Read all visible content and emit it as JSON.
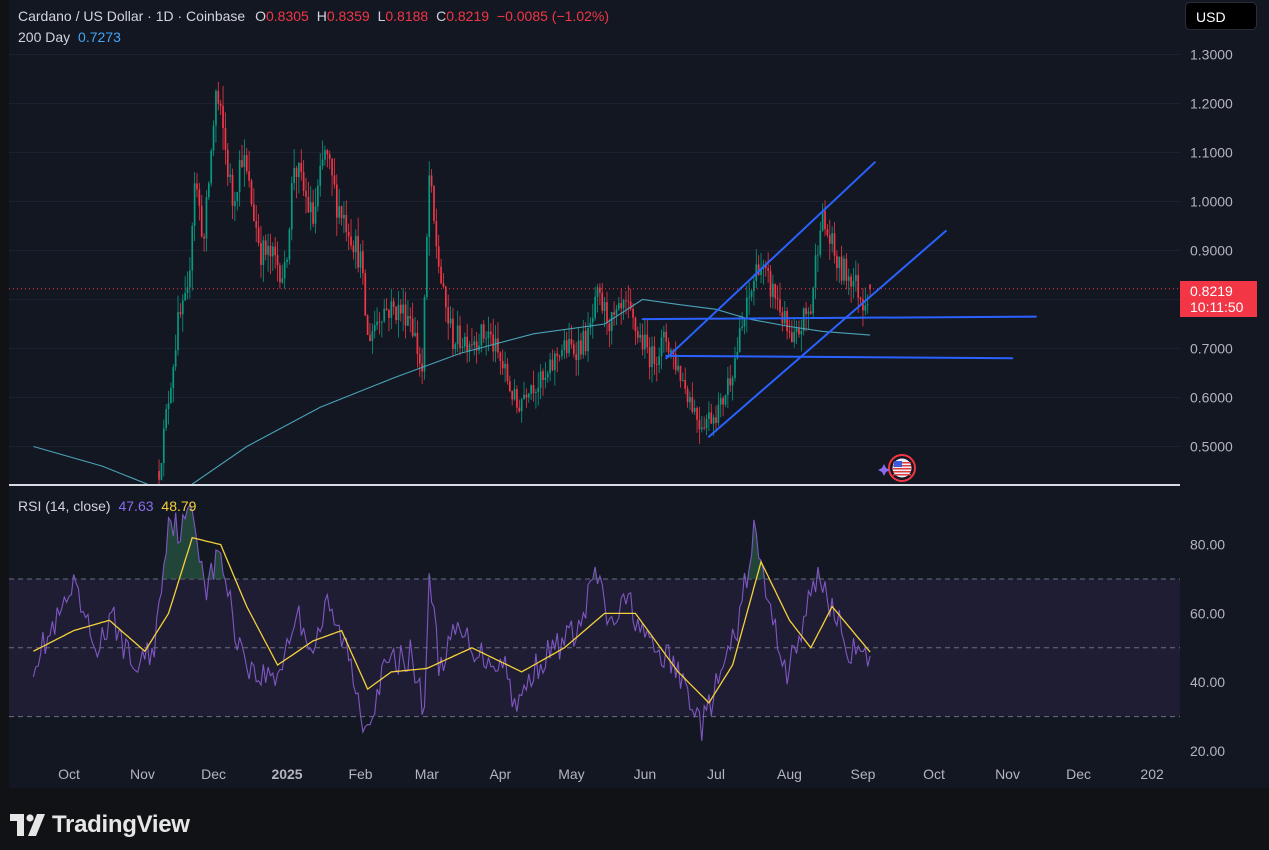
{
  "header": {
    "symbol": "Cardano / US Dollar · 1D · Coinbase",
    "o_label": "O",
    "o_value": "0.8305",
    "h_label": "H",
    "h_value": "0.8359",
    "l_label": "L",
    "l_value": "0.8188",
    "c_label": "C",
    "c_value": "0.8219",
    "change": "−0.0085 (−1.02%)"
  },
  "ma_legend": {
    "label": "200 Day",
    "value": "0.7273"
  },
  "currency_button": "USD",
  "current_price": {
    "value": "0.8219",
    "countdown": "10:11:50"
  },
  "rsi_legend": {
    "label": "RSI (14, close)",
    "rsi_value": "47.63",
    "ma_value": "48.79"
  },
  "brand": {
    "name": "TradingView"
  },
  "colors": {
    "up": "#089981",
    "down": "#f23645",
    "ma200": "#4aa3b8",
    "rsi": "#7e57c2",
    "rsi_ma": "#f5d13b",
    "trendline": "#2962ff"
  },
  "chart_data": [
    {
      "type": "candlestick",
      "title": "Cardano / US Dollar · 1D · Coinbase",
      "y_ticks": [
        "1.3000",
        "1.2000",
        "1.1000",
        "1.0000",
        "0.9000",
        "0.8000",
        "0.7000",
        "0.6000",
        "0.5000"
      ],
      "ylim": [
        0.43,
        1.36
      ],
      "x_ticks": [
        "Oct",
        "Nov",
        "Dec",
        "2025",
        "Feb",
        "Mar",
        "Apr",
        "May",
        "Jun",
        "Jul",
        "Aug",
        "Sep",
        "Oct",
        "Nov",
        "Dec",
        "202"
      ],
      "approx_close_path": [
        {
          "date": "2024-11-08",
          "close": 0.45
        },
        {
          "date": "2024-11-12",
          "close": 0.6
        },
        {
          "date": "2024-11-16",
          "close": 0.75
        },
        {
          "date": "2024-11-20",
          "close": 0.8
        },
        {
          "date": "2024-11-23",
          "close": 1.05
        },
        {
          "date": "2024-11-27",
          "close": 0.92
        },
        {
          "date": "2024-12-02",
          "close": 1.22
        },
        {
          "date": "2024-12-05",
          "close": 1.14
        },
        {
          "date": "2024-12-09",
          "close": 1.0
        },
        {
          "date": "2024-12-13",
          "close": 1.1
        },
        {
          "date": "2024-12-17",
          "close": 1.0
        },
        {
          "date": "2024-12-21",
          "close": 0.9
        },
        {
          "date": "2024-12-27",
          "close": 0.88
        },
        {
          "date": "2024-12-31",
          "close": 0.85
        },
        {
          "date": "2025-01-04",
          "close": 1.08
        },
        {
          "date": "2025-01-08",
          "close": 1.02
        },
        {
          "date": "2025-01-12",
          "close": 0.96
        },
        {
          "date": "2025-01-17",
          "close": 1.1
        },
        {
          "date": "2025-01-22",
          "close": 1.0
        },
        {
          "date": "2025-01-27",
          "close": 0.95
        },
        {
          "date": "2025-02-01",
          "close": 0.88
        },
        {
          "date": "2025-02-04",
          "close": 0.72
        },
        {
          "date": "2025-02-10",
          "close": 0.78
        },
        {
          "date": "2025-02-16",
          "close": 0.78
        },
        {
          "date": "2025-02-22",
          "close": 0.77
        },
        {
          "date": "2025-02-27",
          "close": 0.65
        },
        {
          "date": "2025-03-02",
          "close": 1.05
        },
        {
          "date": "2025-03-04",
          "close": 0.95
        },
        {
          "date": "2025-03-08",
          "close": 0.8
        },
        {
          "date": "2025-03-12",
          "close": 0.72
        },
        {
          "date": "2025-03-20",
          "close": 0.72
        },
        {
          "date": "2025-03-27",
          "close": 0.73
        },
        {
          "date": "2025-04-03",
          "close": 0.65
        },
        {
          "date": "2025-04-08",
          "close": 0.58
        },
        {
          "date": "2025-04-13",
          "close": 0.63
        },
        {
          "date": "2025-04-20",
          "close": 0.63
        },
        {
          "date": "2025-04-26",
          "close": 0.7
        },
        {
          "date": "2025-05-02",
          "close": 0.7
        },
        {
          "date": "2025-05-08",
          "close": 0.72
        },
        {
          "date": "2025-05-12",
          "close": 0.8
        },
        {
          "date": "2025-05-18",
          "close": 0.75
        },
        {
          "date": "2025-05-24",
          "close": 0.78
        },
        {
          "date": "2025-05-29",
          "close": 0.73
        },
        {
          "date": "2025-06-04",
          "close": 0.68
        },
        {
          "date": "2025-06-10",
          "close": 0.72
        },
        {
          "date": "2025-06-15",
          "close": 0.66
        },
        {
          "date": "2025-06-20",
          "close": 0.6
        },
        {
          "date": "2025-06-24",
          "close": 0.55
        },
        {
          "date": "2025-06-28",
          "close": 0.56
        },
        {
          "date": "2025-07-03",
          "close": 0.58
        },
        {
          "date": "2025-07-09",
          "close": 0.68
        },
        {
          "date": "2025-07-14",
          "close": 0.78
        },
        {
          "date": "2025-07-19",
          "close": 0.88
        },
        {
          "date": "2025-07-22",
          "close": 0.84
        },
        {
          "date": "2025-07-27",
          "close": 0.8
        },
        {
          "date": "2025-08-02",
          "close": 0.7
        },
        {
          "date": "2025-08-07",
          "close": 0.76
        },
        {
          "date": "2025-08-10",
          "close": 0.78
        },
        {
          "date": "2025-08-14",
          "close": 0.97
        },
        {
          "date": "2025-08-18",
          "close": 0.92
        },
        {
          "date": "2025-08-22",
          "close": 0.86
        },
        {
          "date": "2025-08-27",
          "close": 0.85
        },
        {
          "date": "2025-09-01",
          "close": 0.8
        },
        {
          "date": "2025-09-04",
          "close": 0.8219
        }
      ],
      "ma200_path": [
        {
          "date": "2024-09-16",
          "value": 0.5
        },
        {
          "date": "2024-10-15",
          "value": 0.46
        },
        {
          "date": "2024-11-15",
          "value": 0.4
        },
        {
          "date": "2024-12-15",
          "value": 0.5
        },
        {
          "date": "2025-01-15",
          "value": 0.58
        },
        {
          "date": "2025-02-15",
          "value": 0.64
        },
        {
          "date": "2025-03-15",
          "value": 0.69
        },
        {
          "date": "2025-04-15",
          "value": 0.73
        },
        {
          "date": "2025-05-15",
          "value": 0.75
        },
        {
          "date": "2025-05-31",
          "value": 0.8
        },
        {
          "date": "2025-06-15",
          "value": 0.79
        },
        {
          "date": "2025-07-01",
          "value": 0.78
        },
        {
          "date": "2025-07-15",
          "value": 0.76
        },
        {
          "date": "2025-08-01",
          "value": 0.745
        },
        {
          "date": "2025-08-15",
          "value": 0.735
        },
        {
          "date": "2025-09-04",
          "value": 0.7273
        }
      ],
      "trendlines": [
        {
          "from": {
            "date": "2025-06-10",
            "value": 0.68
          },
          "to": {
            "date": "2025-09-06",
            "value": 1.08
          }
        },
        {
          "from": {
            "date": "2025-06-28",
            "value": 0.52
          },
          "to": {
            "date": "2025-10-06",
            "value": 0.94
          }
        },
        {
          "from": {
            "date": "2025-05-31",
            "value": 0.76
          },
          "to": {
            "date": "2025-11-13",
            "value": 0.765
          }
        },
        {
          "from": {
            "date": "2025-06-10",
            "value": 0.685
          },
          "to": {
            "date": "2025-11-03",
            "value": 0.68
          }
        }
      ]
    },
    {
      "type": "line",
      "title": "RSI (14, close)",
      "y_ticks": [
        "80.00",
        "60.00",
        "40.00",
        "20.00"
      ],
      "ylim": [
        20,
        92
      ],
      "bands": [
        30,
        50,
        70
      ],
      "series": [
        {
          "name": "RSI",
          "values": [
            {
              "date": "2024-09-16",
              "value": 46
            },
            {
              "date": "2024-09-25",
              "value": 56
            },
            {
              "date": "2024-10-03",
              "value": 67
            },
            {
              "date": "2024-10-12",
              "value": 50
            },
            {
              "date": "2024-10-20",
              "value": 58
            },
            {
              "date": "2024-10-28",
              "value": 44
            },
            {
              "date": "2024-11-06",
              "value": 50
            },
            {
              "date": "2024-11-12",
              "value": 88
            },
            {
              "date": "2024-11-17",
              "value": 84
            },
            {
              "date": "2024-11-22",
              "value": 90
            },
            {
              "date": "2024-11-28",
              "value": 68
            },
            {
              "date": "2024-12-04",
              "value": 78
            },
            {
              "date": "2024-12-10",
              "value": 55
            },
            {
              "date": "2024-12-18",
              "value": 42
            },
            {
              "date": "2024-12-28",
              "value": 42
            },
            {
              "date": "2025-01-05",
              "value": 60
            },
            {
              "date": "2025-01-12",
              "value": 50
            },
            {
              "date": "2025-01-18",
              "value": 62
            },
            {
              "date": "2025-01-26",
              "value": 50
            },
            {
              "date": "2025-02-03",
              "value": 27
            },
            {
              "date": "2025-02-12",
              "value": 45
            },
            {
              "date": "2025-02-22",
              "value": 48
            },
            {
              "date": "2025-02-28",
              "value": 32
            },
            {
              "date": "2025-03-02",
              "value": 73
            },
            {
              "date": "2025-03-06",
              "value": 45
            },
            {
              "date": "2025-03-14",
              "value": 55
            },
            {
              "date": "2025-03-24",
              "value": 48
            },
            {
              "date": "2025-04-03",
              "value": 45
            },
            {
              "date": "2025-04-08",
              "value": 32
            },
            {
              "date": "2025-04-15",
              "value": 44
            },
            {
              "date": "2025-04-24",
              "value": 50
            },
            {
              "date": "2025-05-05",
              "value": 56
            },
            {
              "date": "2025-05-11",
              "value": 73
            },
            {
              "date": "2025-05-17",
              "value": 56
            },
            {
              "date": "2025-05-25",
              "value": 64
            },
            {
              "date": "2025-06-03",
              "value": 50
            },
            {
              "date": "2025-06-12",
              "value": 46
            },
            {
              "date": "2025-06-20",
              "value": 36
            },
            {
              "date": "2025-06-25",
              "value": 27
            },
            {
              "date": "2025-07-03",
              "value": 42
            },
            {
              "date": "2025-07-10",
              "value": 55
            },
            {
              "date": "2025-07-17",
              "value": 84
            },
            {
              "date": "2025-07-24",
              "value": 60
            },
            {
              "date": "2025-07-31",
              "value": 43
            },
            {
              "date": "2025-08-06",
              "value": 55
            },
            {
              "date": "2025-08-13",
              "value": 72
            },
            {
              "date": "2025-08-20",
              "value": 60
            },
            {
              "date": "2025-08-26",
              "value": 50
            },
            {
              "date": "2025-09-01",
              "value": 46
            },
            {
              "date": "2025-09-04",
              "value": 47.63
            }
          ]
        },
        {
          "name": "RSI MA",
          "values": [
            {
              "date": "2024-09-16",
              "value": 49
            },
            {
              "date": "2024-10-03",
              "value": 55
            },
            {
              "date": "2024-10-18",
              "value": 58
            },
            {
              "date": "2024-11-02",
              "value": 49
            },
            {
              "date": "2024-11-12",
              "value": 60
            },
            {
              "date": "2024-11-22",
              "value": 82
            },
            {
              "date": "2024-12-04",
              "value": 80
            },
            {
              "date": "2024-12-15",
              "value": 62
            },
            {
              "date": "2024-12-28",
              "value": 45
            },
            {
              "date": "2025-01-12",
              "value": 52
            },
            {
              "date": "2025-01-24",
              "value": 55
            },
            {
              "date": "2025-02-04",
              "value": 38
            },
            {
              "date": "2025-02-14",
              "value": 43
            },
            {
              "date": "2025-03-01",
              "value": 44
            },
            {
              "date": "2025-03-20",
              "value": 50
            },
            {
              "date": "2025-04-10",
              "value": 43
            },
            {
              "date": "2025-04-28",
              "value": 50
            },
            {
              "date": "2025-05-15",
              "value": 60
            },
            {
              "date": "2025-05-28",
              "value": 60
            },
            {
              "date": "2025-06-15",
              "value": 43
            },
            {
              "date": "2025-06-28",
              "value": 34
            },
            {
              "date": "2025-07-08",
              "value": 45
            },
            {
              "date": "2025-07-20",
              "value": 75
            },
            {
              "date": "2025-08-01",
              "value": 58
            },
            {
              "date": "2025-08-10",
              "value": 50
            },
            {
              "date": "2025-08-19",
              "value": 62
            },
            {
              "date": "2025-09-04",
              "value": 48.79
            }
          ]
        }
      ]
    }
  ]
}
